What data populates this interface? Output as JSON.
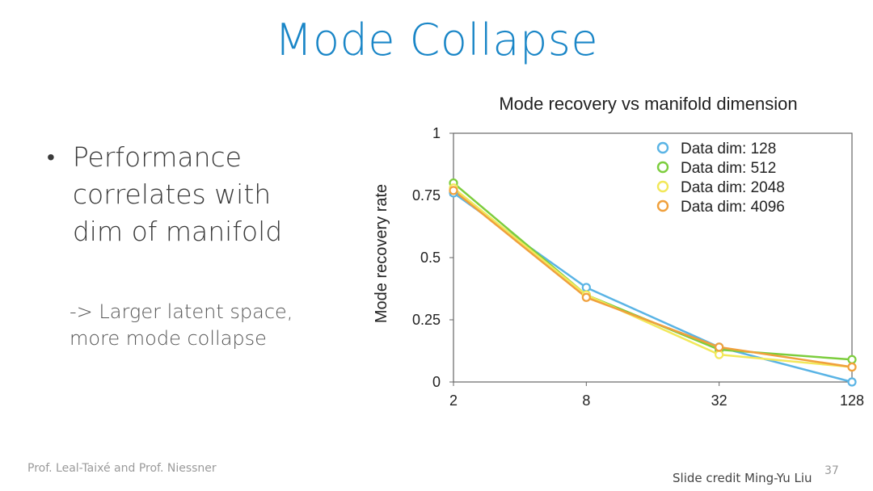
{
  "slide": {
    "title": "Mode Collapse",
    "bullet_lines": [
      "Performance",
      "correlates with",
      "dim of manifold"
    ],
    "note_lines": [
      "-> Larger latent space,",
      "more mode collapse"
    ],
    "footer_authors": "Prof. Leal-Taixé and Prof. Niessner",
    "credit": "Slide credit Ming-Yu Liu",
    "page_number": "37",
    "title_color": "#1a86c7"
  },
  "chart_data": {
    "type": "line",
    "title": "Mode recovery vs manifold dimension",
    "xlabel": "",
    "ylabel": "Mode recovery rate",
    "x": [
      2,
      8,
      32,
      128
    ],
    "x_tick_labels": [
      "2",
      "8",
      "32",
      "128"
    ],
    "x_scale": "log",
    "ylim": [
      0,
      1
    ],
    "y_ticks": [
      0,
      0.25,
      0.5,
      0.75,
      1
    ],
    "y_tick_labels": [
      "0",
      "0.25",
      "0.5",
      "0.75",
      "1"
    ],
    "grid": false,
    "legend_position": "top-right",
    "series": [
      {
        "name": "Data dim: 128",
        "color": "#5ab4e5",
        "values": [
          0.76,
          0.38,
          0.14,
          0.0
        ]
      },
      {
        "name": "Data dim: 512",
        "color": "#7ccd3d",
        "values": [
          0.8,
          0.35,
          0.13,
          0.09
        ]
      },
      {
        "name": "Data dim: 2048",
        "color": "#f2e85a",
        "values": [
          0.78,
          0.35,
          0.11,
          0.06
        ]
      },
      {
        "name": "Data dim: 4096",
        "color": "#f0a03c",
        "values": [
          0.77,
          0.34,
          0.14,
          0.06
        ]
      }
    ]
  }
}
